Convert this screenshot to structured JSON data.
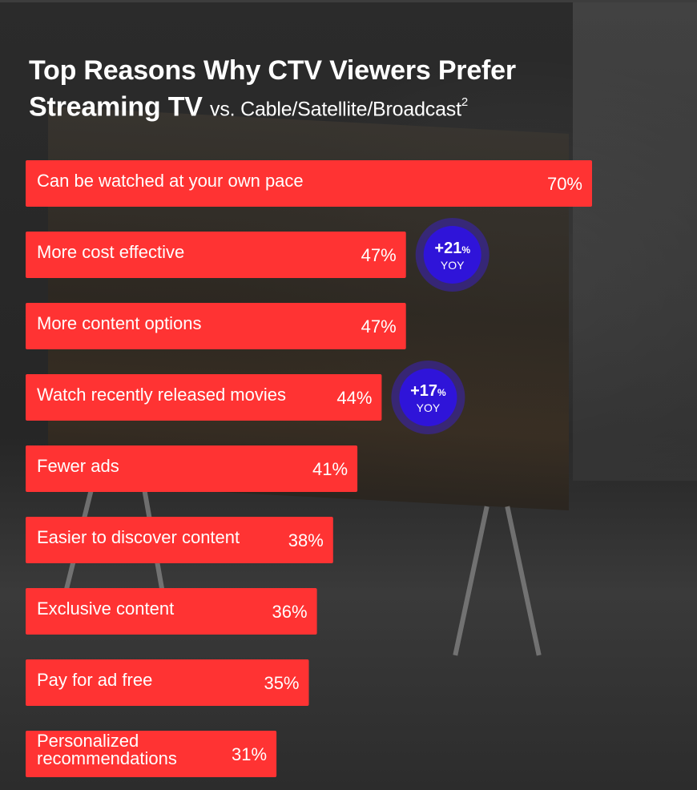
{
  "title": {
    "line1": "Top Reasons Why CTV Viewers Prefer",
    "line2_bold": "Streaming TV",
    "line2_rest": "vs. Cable/Satellite/Broadcast",
    "superscript": "2"
  },
  "colors": {
    "bar": "#ff3333",
    "badge_outer": "#3a22b8",
    "badge_inner": "#2f14d9",
    "text": "#ffffff"
  },
  "chart_data": {
    "type": "bar",
    "orientation": "horizontal",
    "categories": [
      "Can be watched at your own pace",
      "More cost effective",
      "More content options",
      "Watch recently released movies",
      "Fewer ads",
      "Easier to discover content",
      "Exclusive content",
      "Pay for ad free",
      "Personalized recommendations"
    ],
    "values": [
      70,
      47,
      47,
      44,
      41,
      38,
      36,
      35,
      31
    ],
    "value_labels": [
      "70%",
      "47%",
      "47%",
      "44%",
      "41%",
      "38%",
      "36%",
      "35%",
      "31%"
    ],
    "xlim": [
      0,
      70
    ],
    "annotations": [
      {
        "category": "More cost effective",
        "delta": "+21",
        "unit": "%",
        "label": "YOY"
      },
      {
        "category": "Watch recently released movies",
        "delta": "+17",
        "unit": "%",
        "label": "YOY"
      }
    ]
  }
}
